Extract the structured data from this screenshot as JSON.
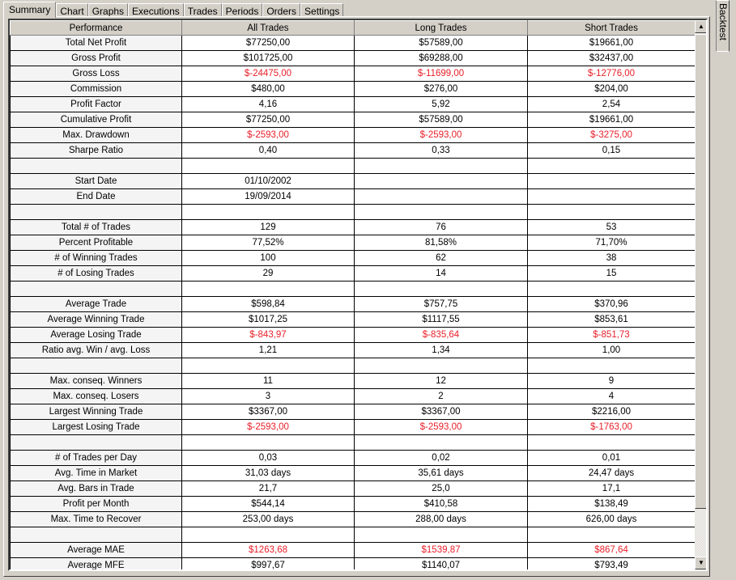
{
  "tabs": [
    "Summary",
    "Chart",
    "Graphs",
    "Executions",
    "Trades",
    "Periods",
    "Orders",
    "Settings"
  ],
  "active_tab": "Summary",
  "side_tab": "Backtest",
  "colors": {
    "negative": "#e8202a"
  },
  "columns": [
    "Performance",
    "All Trades",
    "Long Trades",
    "Short Trades"
  ],
  "rows": [
    {
      "label": "Total Net Profit",
      "values": [
        "$77250,00",
        "$57589,00",
        "$19661,00"
      ]
    },
    {
      "label": "Gross Profit",
      "values": [
        "$101725,00",
        "$69288,00",
        "$32437,00"
      ]
    },
    {
      "label": "Gross Loss",
      "values": [
        "$-24475,00",
        "$-11699,00",
        "$-12776,00"
      ],
      "negative": true
    },
    {
      "label": "Commission",
      "values": [
        "$480,00",
        "$276,00",
        "$204,00"
      ]
    },
    {
      "label": "Profit Factor",
      "values": [
        "4,16",
        "5,92",
        "2,54"
      ]
    },
    {
      "label": "Cumulative Profit",
      "values": [
        "$77250,00",
        "$57589,00",
        "$19661,00"
      ]
    },
    {
      "label": "Max. Drawdown",
      "values": [
        "$-2593,00",
        "$-2593,00",
        "$-3275,00"
      ],
      "negative": true
    },
    {
      "label": "Sharpe Ratio",
      "values": [
        "0,40",
        "0,33",
        "0,15"
      ]
    },
    {
      "label": "",
      "values": [
        "",
        "",
        ""
      ]
    },
    {
      "label": "Start Date",
      "values": [
        "01/10/2002",
        "",
        ""
      ]
    },
    {
      "label": "End Date",
      "values": [
        "19/09/2014",
        "",
        ""
      ]
    },
    {
      "label": "",
      "values": [
        "",
        "",
        ""
      ]
    },
    {
      "label": "Total # of Trades",
      "values": [
        "129",
        "76",
        "53"
      ]
    },
    {
      "label": "Percent Profitable",
      "values": [
        "77,52%",
        "81,58%",
        "71,70%"
      ]
    },
    {
      "label": "# of Winning Trades",
      "values": [
        "100",
        "62",
        "38"
      ]
    },
    {
      "label": "# of Losing Trades",
      "values": [
        "29",
        "14",
        "15"
      ]
    },
    {
      "label": "",
      "values": [
        "",
        "",
        ""
      ]
    },
    {
      "label": "Average Trade",
      "values": [
        "$598,84",
        "$757,75",
        "$370,96"
      ]
    },
    {
      "label": "Average Winning Trade",
      "values": [
        "$1017,25",
        "$1117,55",
        "$853,61"
      ]
    },
    {
      "label": "Average Losing Trade",
      "values": [
        "$-843,97",
        "$-835,64",
        "$-851,73"
      ],
      "negative": true
    },
    {
      "label": "Ratio avg. Win / avg. Loss",
      "values": [
        "1,21",
        "1,34",
        "1,00"
      ]
    },
    {
      "label": "",
      "values": [
        "",
        "",
        ""
      ]
    },
    {
      "label": "Max. conseq. Winners",
      "values": [
        "11",
        "12",
        "9"
      ]
    },
    {
      "label": "Max. conseq. Losers",
      "values": [
        "3",
        "2",
        "4"
      ]
    },
    {
      "label": "Largest Winning Trade",
      "values": [
        "$3367,00",
        "$3367,00",
        "$2216,00"
      ]
    },
    {
      "label": "Largest Losing Trade",
      "values": [
        "$-2593,00",
        "$-2593,00",
        "$-1763,00"
      ],
      "negative": true
    },
    {
      "label": "",
      "values": [
        "",
        "",
        ""
      ]
    },
    {
      "label": "# of Trades per Day",
      "values": [
        "0,03",
        "0,02",
        "0,01"
      ]
    },
    {
      "label": "Avg. Time in Market",
      "values": [
        "31,03 days",
        "35,61 days",
        "24,47 days"
      ]
    },
    {
      "label": "Avg. Bars in Trade",
      "values": [
        "21,7",
        "25,0",
        "17,1"
      ]
    },
    {
      "label": "Profit per Month",
      "values": [
        "$544,14",
        "$410,58",
        "$138,49"
      ]
    },
    {
      "label": "Max. Time to Recover",
      "values": [
        "253,00 days",
        "288,00 days",
        "626,00 days"
      ]
    },
    {
      "label": "",
      "values": [
        "",
        "",
        ""
      ]
    },
    {
      "label": "Average MAE",
      "values": [
        "$1263,68",
        "$1539,87",
        "$867,64"
      ],
      "negative": true
    },
    {
      "label": "Average MFE",
      "values": [
        "$997,67",
        "$1140,07",
        "$793,49"
      ]
    }
  ],
  "scrollbar": {
    "position_percent": 0,
    "visible_percent": 86
  }
}
